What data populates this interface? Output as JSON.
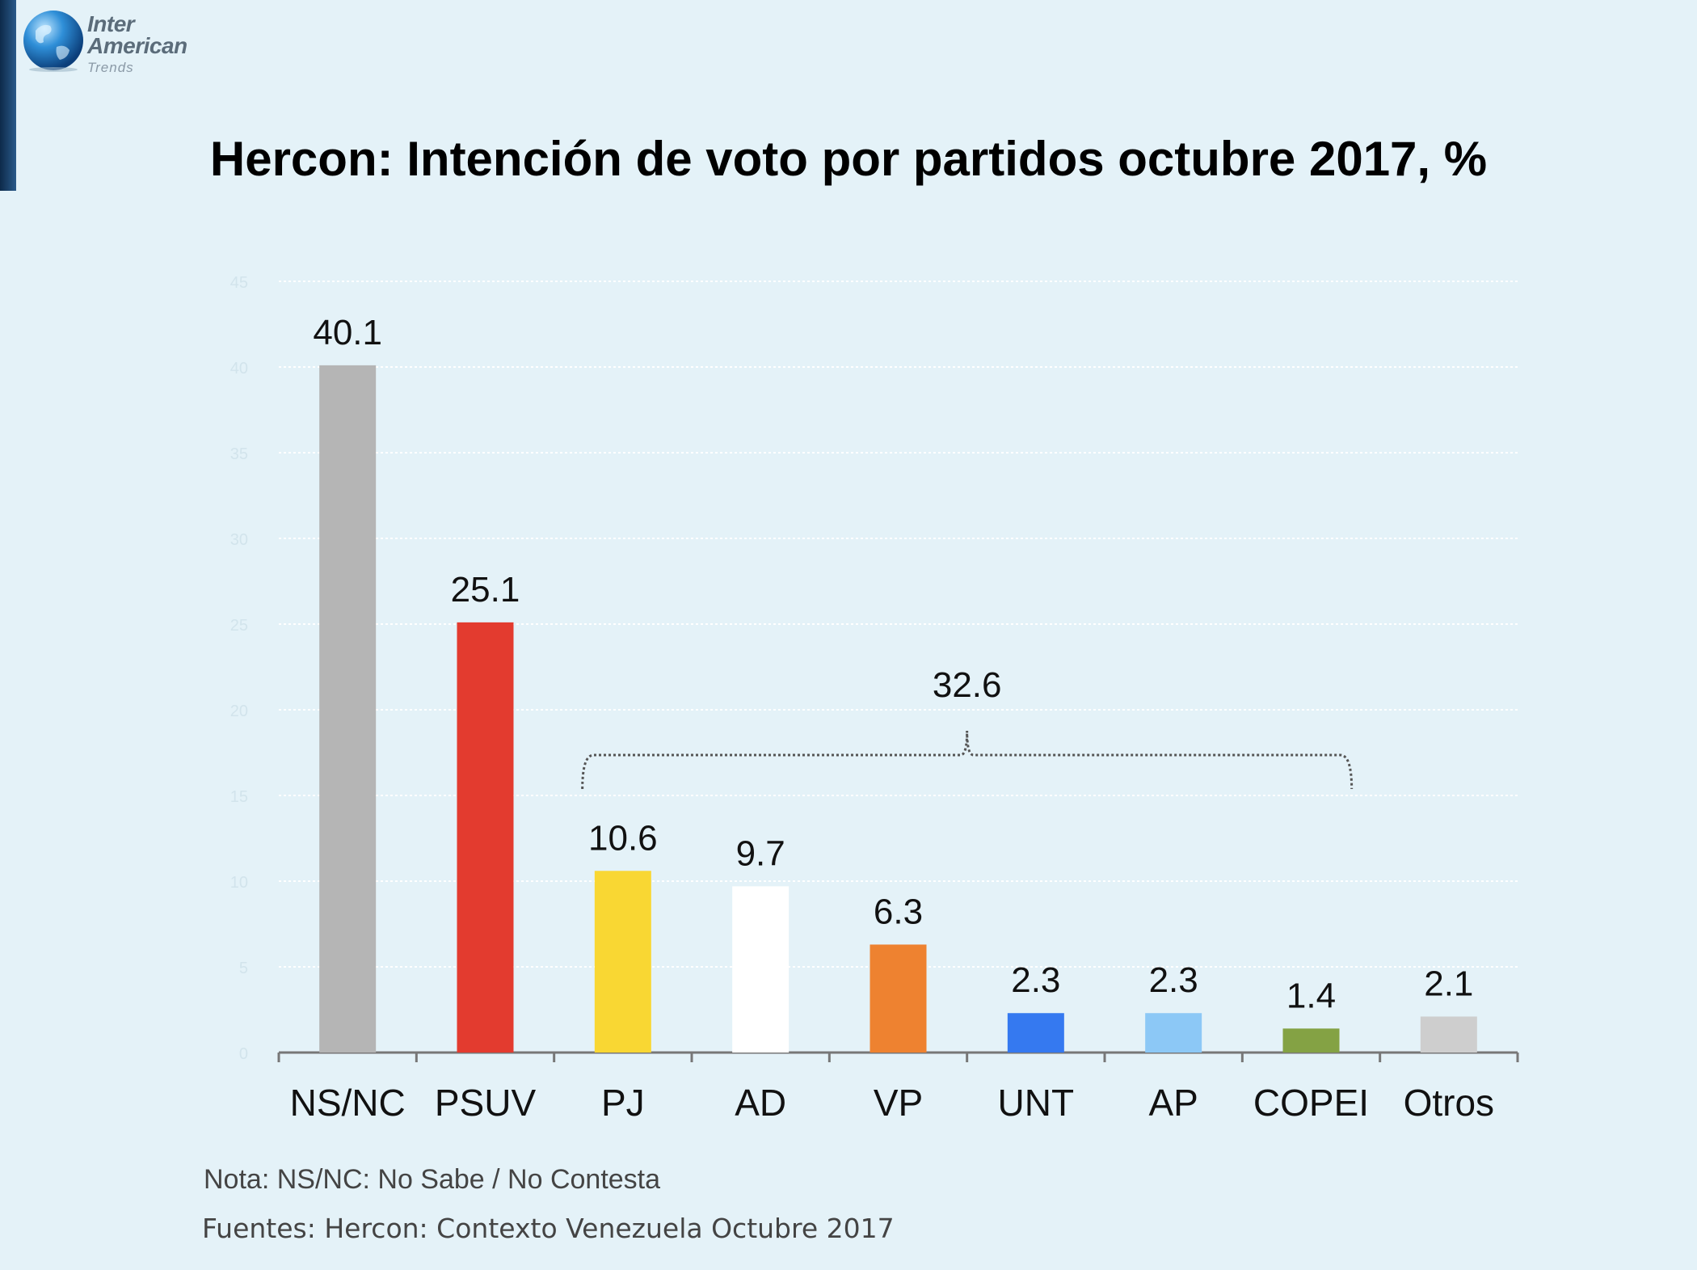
{
  "brand": {
    "line1": "Inter",
    "line2": "American",
    "line3": "Trends",
    "globe_icon": "globe-icon"
  },
  "title": "Hercon:  Intención de voto por partidos octubre 2017, %",
  "chart_data": {
    "type": "bar",
    "categories": [
      "NS/NC",
      "PSUV",
      "PJ",
      "AD",
      "VP",
      "UNT",
      "AP",
      "COPEI",
      "Otros"
    ],
    "values": [
      40.1,
      25.1,
      10.6,
      9.7,
      6.3,
      2.3,
      2.3,
      1.4,
      2.1
    ],
    "value_labels": [
      "40.1",
      "25.1",
      "10.6",
      "9.7",
      "6.3",
      "2.3",
      "2.3",
      "1.4",
      "2.1"
    ],
    "colors": [
      "#b5b5b5",
      "#e33b2f",
      "#f9d733",
      "#ffffff",
      "#ee8230",
      "#3579f0",
      "#8cc8f6",
      "#84a244",
      "#cecece"
    ],
    "ylim": [
      0,
      45
    ],
    "yticks": [
      0,
      5,
      10,
      15,
      20,
      25,
      30,
      35,
      40,
      45
    ],
    "grid": true,
    "annotation": {
      "label": "32.6",
      "from_category": "PJ",
      "to_category": "COPEI"
    }
  },
  "note": "Nota: NS/NC: No Sabe / No Contesta",
  "source": "Fuentes: Hercon: Contexto Venezuela Octubre 2017",
  "colors": {
    "background": "#e4f2f8",
    "gridline": "#ffffff",
    "axis": "#777777"
  }
}
